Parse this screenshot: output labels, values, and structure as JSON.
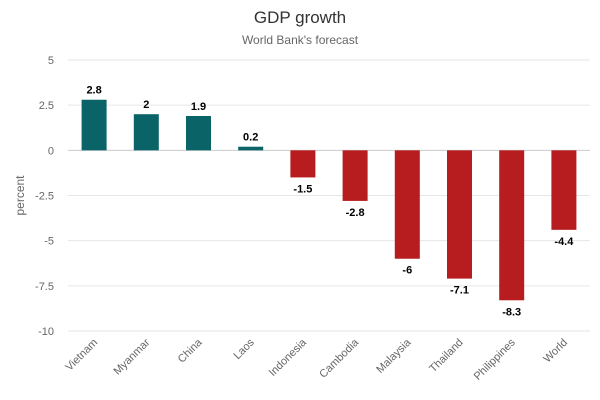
{
  "chart_data": {
    "type": "bar",
    "title": "GDP growth",
    "subtitle": "World Bank's forecast",
    "ylabel": "percent",
    "xlabel": "",
    "ylim": [
      -10,
      5
    ],
    "yticks": [
      5,
      2.5,
      0,
      -2.5,
      -5,
      -7.5,
      -10
    ],
    "ytick_labels": [
      "5",
      "2.5",
      "0",
      "-2.5",
      "-5",
      "-7.5",
      "-10"
    ],
    "grid": true,
    "legend": "none",
    "categories": [
      "Vietnam",
      "Myanmar",
      "China",
      "Laos",
      "Indonesia",
      "Cambodia",
      "Malaysia",
      "Thailand",
      "Philippines",
      "World"
    ],
    "values": [
      2.8,
      2,
      1.9,
      0.2,
      -1.5,
      -2.8,
      -6,
      -7.1,
      -8.3,
      -4.4
    ],
    "value_labels": [
      "2.8",
      "2",
      "1.9",
      "0.2",
      "-1.5",
      "-2.8",
      "-6",
      "-7.1",
      "-8.3",
      "-4.4"
    ],
    "colors": {
      "positive": "#0a6366",
      "negative": "#b71c1f"
    }
  }
}
